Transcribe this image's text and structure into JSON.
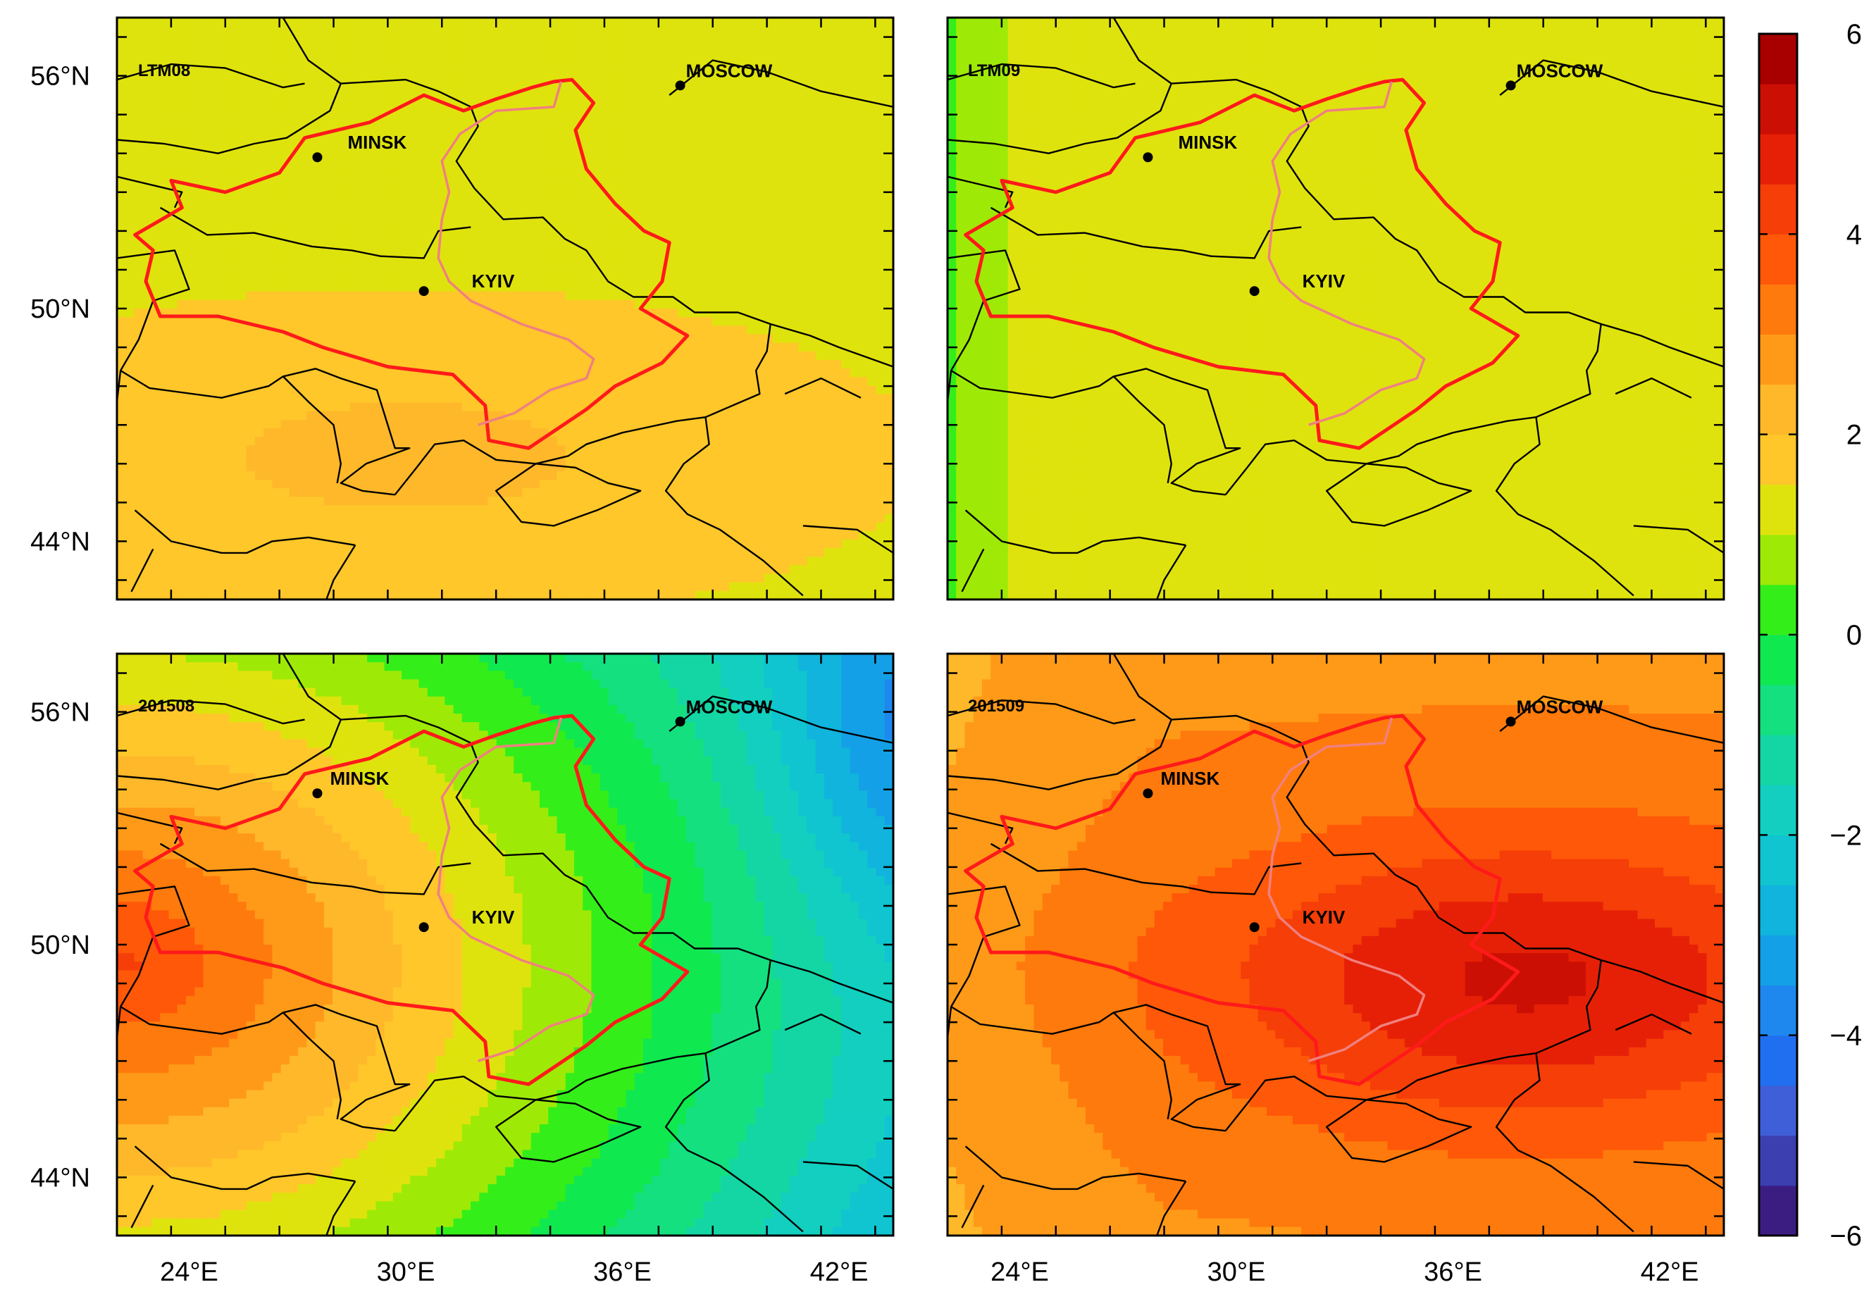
{
  "panels": [
    {
      "label": "LTM08",
      "field": "ltm08"
    },
    {
      "label": "LTM09",
      "field": "ltm09"
    },
    {
      "label": "201508",
      "field": "y201508"
    },
    {
      "label": "201509",
      "field": "y201509"
    }
  ],
  "cities": [
    {
      "name": "MOSCOW",
      "lon": 37.6,
      "lat": 55.75
    },
    {
      "name": "MINSK",
      "lon": 27.55,
      "lat": 53.9
    },
    {
      "name": "KYIV",
      "lon": 30.5,
      "lat": 50.45
    }
  ],
  "axes": {
    "lon_range": [
      22,
      43.5
    ],
    "lat_range": [
      42.5,
      57.5
    ],
    "lat_ticks": [
      {
        "value": 56,
        "label": "56°N"
      },
      {
        "value": 50,
        "label": "50°N"
      },
      {
        "value": 44,
        "label": "44°N"
      }
    ],
    "lon_ticks": [
      {
        "value": 24,
        "label": "24°E"
      },
      {
        "value": 30,
        "label": "30°E"
      },
      {
        "value": 36,
        "label": "36°E"
      },
      {
        "value": 42,
        "label": "42°E"
      }
    ]
  },
  "colorbar": {
    "min": -6,
    "max": 6,
    "tick_labels": [
      {
        "value": 6,
        "label": "6"
      },
      {
        "value": 4,
        "label": "4"
      },
      {
        "value": 2,
        "label": "2"
      },
      {
        "value": 0,
        "label": "0"
      },
      {
        "value": -2,
        "label": "−2"
      },
      {
        "value": -4,
        "label": "−4"
      },
      {
        "value": -6,
        "label": "−6"
      }
    ],
    "bands": [
      {
        "from": -6.0,
        "to": -5.5,
        "color": "#3b1d82"
      },
      {
        "from": -5.5,
        "to": -5.0,
        "color": "#3b3fb0"
      },
      {
        "from": -5.0,
        "to": -4.5,
        "color": "#3f5fd8"
      },
      {
        "from": -4.5,
        "to": -4.0,
        "color": "#1f6ff0"
      },
      {
        "from": -4.0,
        "to": -3.5,
        "color": "#1e88ee"
      },
      {
        "from": -3.5,
        "to": -3.0,
        "color": "#14a0e6"
      },
      {
        "from": -3.0,
        "to": -2.5,
        "color": "#10b4dc"
      },
      {
        "from": -2.5,
        "to": -2.0,
        "color": "#10c4d0"
      },
      {
        "from": -2.0,
        "to": -1.5,
        "color": "#12cfc0"
      },
      {
        "from": -1.5,
        "to": -1.0,
        "color": "#14d6a4"
      },
      {
        "from": -1.0,
        "to": -0.5,
        "color": "#14e080"
      },
      {
        "from": -0.5,
        "to": 0.0,
        "color": "#10e850"
      },
      {
        "from": 0.0,
        "to": 0.5,
        "color": "#34ee1a"
      },
      {
        "from": 0.5,
        "to": 1.0,
        "color": "#9eea06"
      },
      {
        "from": 1.0,
        "to": 1.5,
        "color": "#dfe30d"
      },
      {
        "from": 1.5,
        "to": 2.0,
        "color": "#ffc72a"
      },
      {
        "from": 2.0,
        "to": 2.5,
        "color": "#ffb82a"
      },
      {
        "from": 2.5,
        "to": 3.0,
        "color": "#ff9a18"
      },
      {
        "from": 3.0,
        "to": 3.5,
        "color": "#ff7a0c"
      },
      {
        "from": 3.5,
        "to": 4.0,
        "color": "#ff5808"
      },
      {
        "from": 4.0,
        "to": 4.5,
        "color": "#f53e08"
      },
      {
        "from": 4.5,
        "to": 5.0,
        "color": "#e62006"
      },
      {
        "from": 5.0,
        "to": 5.5,
        "color": "#cc0f04"
      },
      {
        "from": 5.5,
        "to": 6.0,
        "color": "#a80000"
      }
    ]
  },
  "colors": {
    "basin_outline": "#ff1a1a",
    "basin_divide": "#f08080",
    "borders": "#000000"
  }
}
